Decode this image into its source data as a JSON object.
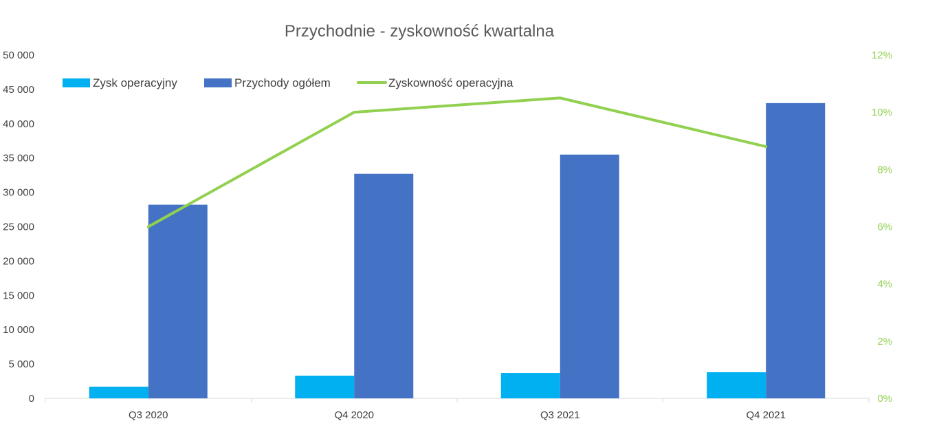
{
  "chart_data": {
    "type": "bar",
    "title": "Przychodnie - zyskowność kwartalna",
    "categories": [
      "Q3 2020",
      "Q4 2020",
      "Q3 2021",
      "Q4 2021"
    ],
    "series": [
      {
        "name": "Zysk operacyjny",
        "type": "bar",
        "axis": "left",
        "color": "#00B0F0",
        "values": [
          1700,
          3300,
          3700,
          3800
        ]
      },
      {
        "name": "Przychody ogółem",
        "type": "bar",
        "axis": "left",
        "color": "#4472C4",
        "values": [
          28200,
          32700,
          35500,
          43000
        ]
      },
      {
        "name": "Zyskowność operacyjna",
        "type": "line",
        "axis": "right",
        "color": "#92D050",
        "values": [
          0.06,
          0.1,
          0.105,
          0.088
        ]
      }
    ],
    "y_left": {
      "min": 0,
      "max": 50000,
      "ticks": [
        "0",
        "5 000",
        "10 000",
        "15 000",
        "20 000",
        "25 000",
        "30 000",
        "35 000",
        "40 000",
        "45 000",
        "50 000"
      ]
    },
    "y_right": {
      "min": 0,
      "max": 0.12,
      "ticks": [
        "0%",
        "2%",
        "4%",
        "6%",
        "8%",
        "10%",
        "12%"
      ],
      "color": "#92D050"
    },
    "grid": false,
    "legend_position": "top"
  }
}
